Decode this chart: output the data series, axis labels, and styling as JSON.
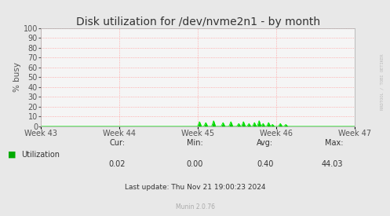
{
  "title": "Disk utilization for /dev/nvme2n1 - by month",
  "ylabel": "% busy",
  "background_color": "#e8e8e8",
  "plot_bg_color": "#f5f5f5",
  "grid_color": "#ff9999",
  "line_color": "#00ee00",
  "fill_color": "#00cc00",
  "x_tick_labels": [
    "Week 43",
    "Week 44",
    "Week 45",
    "Week 46",
    "Week 47"
  ],
  "y_ticks": [
    0,
    10,
    20,
    30,
    40,
    50,
    60,
    70,
    80,
    90,
    100
  ],
  "ylim": [
    0,
    100
  ],
  "legend_label": "Utilization",
  "legend_color": "#00aa00",
  "cur_label": "Cur:",
  "cur_val": "0.02",
  "min_label": "Min:",
  "min_val": "0.00",
  "avg_label": "Avg:",
  "avg_val": "0.40",
  "max_label": "Max:",
  "max_val": "44.03",
  "last_update": "Last update: Thu Nov 21 19:00:23 2024",
  "munin_version": "Munin 2.0.76",
  "watermark": "RRDTOOL / TOBI OETIKER",
  "title_fontsize": 10,
  "label_fontsize": 7.5,
  "tick_fontsize": 7,
  "stats_fontsize": 7,
  "footer_fontsize": 6.5,
  "munin_fontsize": 5.5,
  "watermark_fontsize": 4,
  "num_points": 1000
}
